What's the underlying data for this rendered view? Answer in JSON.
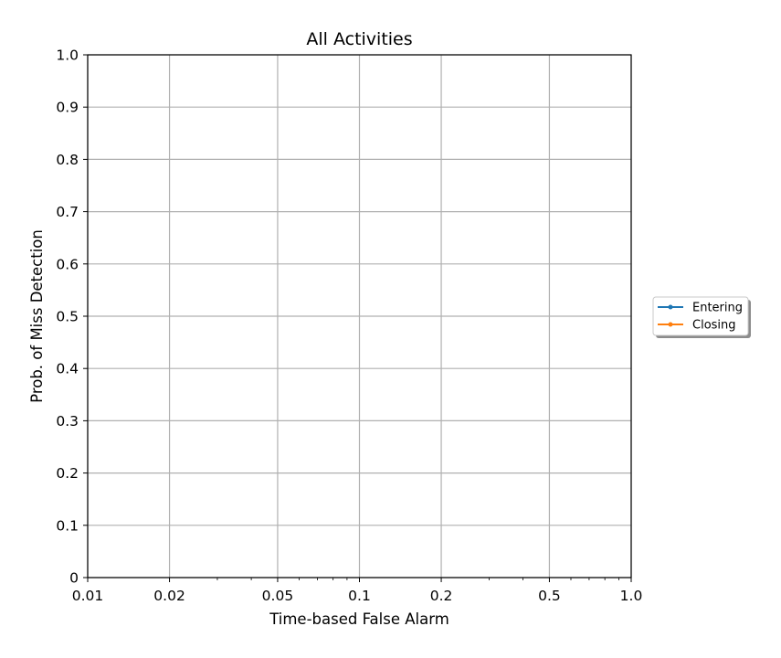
{
  "chart_data": {
    "type": "line",
    "title": "All Activities",
    "xlabel": "Time-based False Alarm",
    "ylabel": "Prob. of Miss Detection",
    "xscale": "log",
    "xlim": [
      0.01,
      1.0
    ],
    "ylim": [
      0,
      1.0
    ],
    "x_ticks": [
      {
        "value": 0.01,
        "label": "0.01"
      },
      {
        "value": 0.02,
        "label": "0.02"
      },
      {
        "value": 0.05,
        "label": "0.05"
      },
      {
        "value": 0.1,
        "label": "0.1"
      },
      {
        "value": 0.2,
        "label": "0.2"
      },
      {
        "value": 0.5,
        "label": "0.5"
      },
      {
        "value": 1.0,
        "label": "1.0"
      }
    ],
    "y_ticks": [
      {
        "value": 0,
        "label": "0"
      },
      {
        "value": 0.1,
        "label": "0.1"
      },
      {
        "value": 0.2,
        "label": "0.2"
      },
      {
        "value": 0.3,
        "label": "0.3"
      },
      {
        "value": 0.4,
        "label": "0.4"
      },
      {
        "value": 0.5,
        "label": "0.5"
      },
      {
        "value": 0.6,
        "label": "0.6"
      },
      {
        "value": 0.7,
        "label": "0.7"
      },
      {
        "value": 0.8,
        "label": "0.8"
      },
      {
        "value": 0.9,
        "label": "0.9"
      },
      {
        "value": 1.0,
        "label": "1.0"
      }
    ],
    "grid": true,
    "legend_position": "right, outside plot",
    "series": [
      {
        "name": "Entering",
        "color": "#1f77b4",
        "x": [],
        "y": []
      },
      {
        "name": "Closing",
        "color": "#ff7f0e",
        "x": [],
        "y": []
      }
    ]
  }
}
